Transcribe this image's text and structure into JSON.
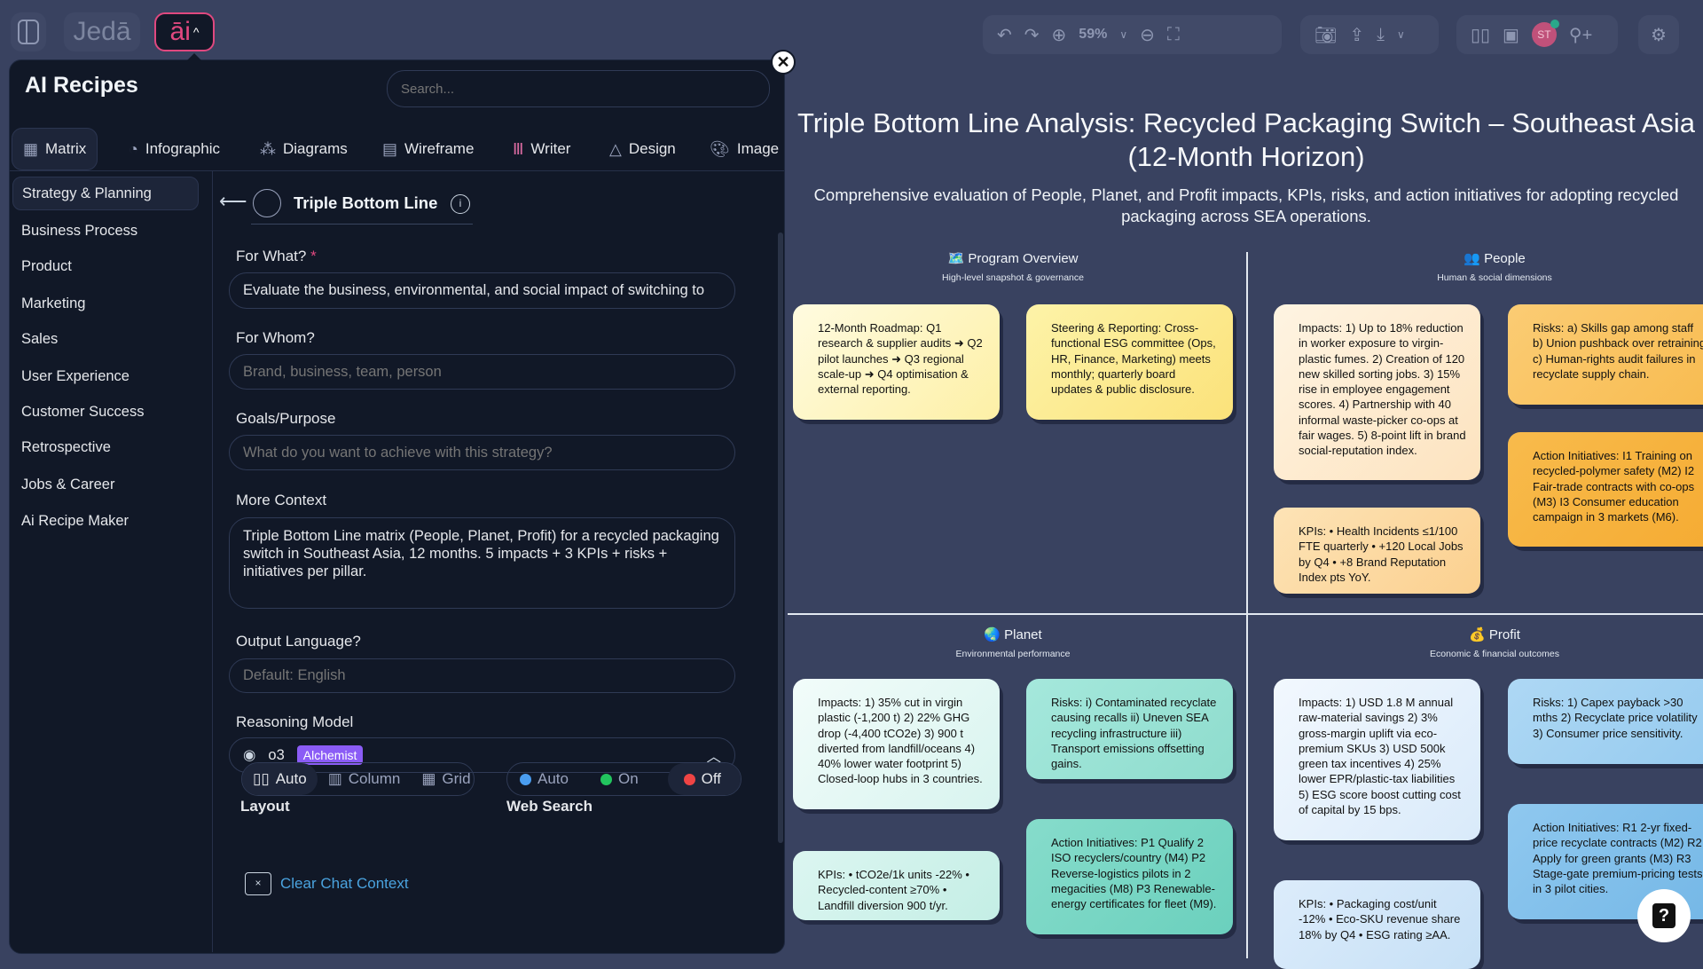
{
  "topbar": {
    "brand": "Jedā",
    "ai_label": "āi",
    "zoom": "59%",
    "avatar_initials": "ST"
  },
  "panel": {
    "title": "AI Recipes",
    "search_placeholder": "Search...",
    "tabs": [
      {
        "label": "Matrix",
        "icon": "matrix-icon"
      },
      {
        "label": "Infographic",
        "icon": "infographic-icon"
      },
      {
        "label": "Diagrams",
        "icon": "diagrams-icon"
      },
      {
        "label": "Wireframe",
        "icon": "wireframe-icon"
      },
      {
        "label": "Writer",
        "icon": "writer-icon"
      },
      {
        "label": "Design",
        "icon": "design-icon"
      },
      {
        "label": "Image",
        "icon": "image-icon"
      }
    ],
    "categories": [
      "Strategy & Planning",
      "Business Process",
      "Product",
      "Marketing",
      "Sales",
      "User Experience",
      "Customer Success",
      "Retrospective",
      "Jobs & Career",
      "Ai Recipe Maker"
    ],
    "recipe_title": "Triple Bottom Line",
    "form": {
      "for_what_label": "For What?",
      "for_what_value": "Evaluate the business, environmental, and social impact of switching to",
      "for_whom_label": "For Whom?",
      "for_whom_placeholder": "Brand, business, team, person",
      "goals_label": "Goals/Purpose",
      "goals_placeholder": "What do you want to achieve with this strategy?",
      "context_label": "More Context",
      "context_value": "Triple Bottom Line matrix (People, Planet, Profit) for a recycled packaging switch in Southeast Asia, 12 months. 5 impacts + 3 KPIs + risks + initiatives per pillar.",
      "language_label": "Output Language?",
      "language_placeholder": "Default: English",
      "model_label": "Reasoning Model",
      "model_value": "o3",
      "model_badge": "Alchemist",
      "layout_label": "Layout",
      "layout_options": [
        "Auto",
        "Column",
        "Grid"
      ],
      "layout_selected": "Auto",
      "web_label": "Web Search",
      "web_options": [
        "Auto",
        "On",
        "Off"
      ],
      "web_selected": "Off",
      "clear_label": "Clear Chat Context"
    }
  },
  "canvas": {
    "title_line1": "Triple Bottom Line Analysis: Recycled Packaging Switch – Southeast Asia",
    "title_line2": "(12-Month Horizon)",
    "subtitle_line1": "Comprehensive evaluation of People, Planet, and Profit impacts, KPIs, risks, and action initiatives for adopting recycled",
    "subtitle_line2": "packaging across SEA operations.",
    "quadrants": {
      "overview": {
        "title": "🗺️ Program Overview",
        "sub": "High-level snapshot & governance",
        "cards": [
          "12-Month Roadmap: Q1 research & supplier audits ➜ Q2 pilot launches ➜ Q3 regional scale-up ➜ Q4 optimisation & external reporting.",
          "Steering & Reporting: Cross-functional ESG committee (Ops, HR, Finance, Marketing) meets monthly; quarterly board updates & public disclosure."
        ]
      },
      "people": {
        "title": "👥 People",
        "sub": "Human & social dimensions",
        "impacts": "Impacts: 1) Up to 18% reduction in worker exposure to virgin-plastic fumes. 2) Creation of 120 new skilled sorting jobs. 3) 15% rise in employee engagement scores. 4) Partnership with 40 informal waste-picker co-ops at fair wages. 5) 8-point lift in brand social-reputation index.",
        "kpis": "KPIs: • Health Incidents ≤1/100 FTE quarterly • +120 Local Jobs by Q4 • +8 Brand Reputation Index pts YoY.",
        "risks": "Risks: a) Skills gap among staff b) Union pushback over retraining c) Human-rights audit failures in recyclate supply chain.",
        "actions": "Action Initiatives: I1 Training on recycled-polymer safety (M2) I2 Fair-trade contracts with co-ops (M3) I3 Consumer education campaign in 3 markets (M6)."
      },
      "planet": {
        "title": "🌏 Planet",
        "sub": "Environmental performance",
        "impacts": "Impacts: 1) 35% cut in virgin plastic (-1,200 t) 2) 22% GHG drop (-4,400 tCO2e) 3) 900 t diverted from landfill/oceans 4) 40% lower water footprint 5) Closed-loop hubs in 3 countries.",
        "kpis": "KPIs: • tCO2e/1k units -22% • Recycled-content ≥70% • Landfill diversion 900 t/yr.",
        "risks": "Risks: i) Contaminated recyclate causing recalls ii) Uneven SEA recycling infrastructure iii) Transport emissions offsetting gains.",
        "actions": "Action Initiatives: P1 Qualify 2 ISO recyclers/country (M4) P2 Reverse-logistics pilots in 2 megacities (M8) P3 Renewable-energy certificates for fleet (M9)."
      },
      "profit": {
        "title": "💰 Profit",
        "sub": "Economic & financial outcomes",
        "impacts": "Impacts: 1) USD 1.8 M annual raw-material savings 2) 3% gross-margin uplift via eco-premium SKUs 3) USD 500k green tax incentives 4) 25% lower EPR/plastic-tax liabilities 5) ESG score boost cutting cost of capital by 15 bps.",
        "kpis": "KPIs: • Packaging cost/unit -12% • Eco-SKU revenue share 18% by Q4 • ESG rating ≥AA.",
        "risks": "Risks: 1) Capex payback >30 mths 2) Recyclate price volatility 3) Consumer price sensitivity.",
        "actions": "Action Initiatives: R1 2-yr fixed-price recyclate contracts (M2) R2 Apply for green grants (M3) R3 Stage-gate premium-pricing tests in 3 pilot cities."
      }
    }
  },
  "colors": {
    "canvas_bg": "#394260",
    "panel_bg": "#111827",
    "accent_pink": "#e0487f",
    "badge_purple": "#8b5cf6",
    "link_blue": "#4aa3df"
  }
}
